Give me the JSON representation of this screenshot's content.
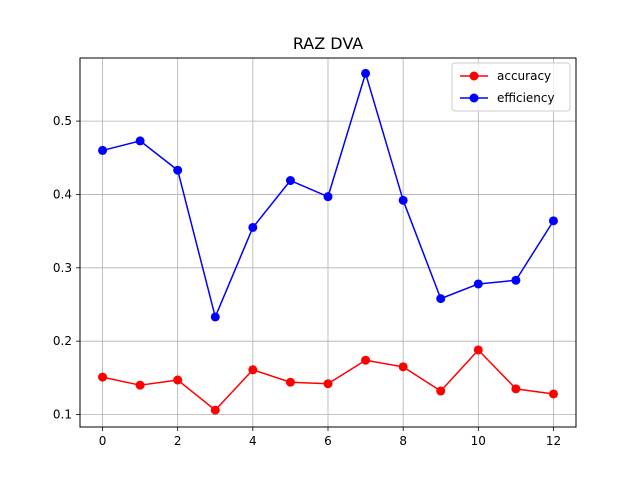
{
  "chart_data": {
    "type": "line",
    "title": "RAZ DVA",
    "xlabel": "",
    "ylabel": "",
    "x": [
      0,
      1,
      2,
      3,
      4,
      5,
      6,
      7,
      8,
      9,
      10,
      11,
      12
    ],
    "xlim": [
      -0.6,
      12.6
    ],
    "ylim": [
      0.083,
      0.586
    ],
    "xticks": [
      0,
      2,
      4,
      6,
      8,
      10,
      12
    ],
    "xtick_labels": [
      "0",
      "2",
      "4",
      "6",
      "8",
      "10",
      "12"
    ],
    "yticks": [
      0.1,
      0.2,
      0.3,
      0.4,
      0.5
    ],
    "ytick_labels": [
      "0.1",
      "0.2",
      "0.3",
      "0.4",
      "0.5"
    ],
    "grid": true,
    "legend_position": "top-right",
    "series": [
      {
        "name": "accuracy",
        "color": "#ff0000",
        "marker": "circle",
        "values": [
          0.151,
          0.14,
          0.147,
          0.106,
          0.161,
          0.144,
          0.142,
          0.174,
          0.165,
          0.132,
          0.188,
          0.135,
          0.128
        ]
      },
      {
        "name": "efficiency",
        "color": "#0000ff",
        "marker": "circle",
        "values": [
          0.46,
          0.473,
          0.433,
          0.233,
          0.355,
          0.419,
          0.397,
          0.565,
          0.392,
          0.258,
          0.278,
          0.283,
          0.364
        ]
      }
    ]
  }
}
